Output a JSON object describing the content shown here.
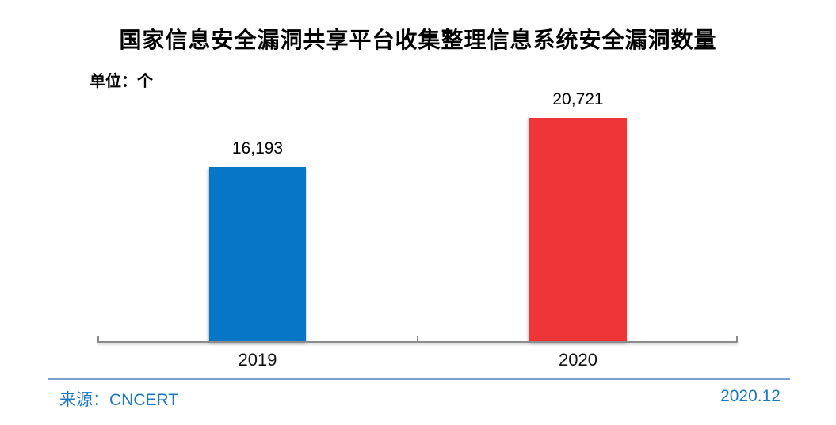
{
  "chart_data": {
    "type": "bar",
    "title": "国家信息安全漏洞共享平台收集整理信息系统安全漏洞数量",
    "unit_label": "单位：个",
    "categories": [
      "2019",
      "2020"
    ],
    "values": [
      16193,
      20721
    ],
    "value_labels": [
      "16,193",
      "20,721"
    ],
    "bar_colors": [
      "#0876C7",
      "#EE3537"
    ],
    "grid": false,
    "y_axis_visible": false,
    "legend_position": "none",
    "baseline_color": "#8C8C8C",
    "ylim": [
      0,
      22000
    ]
  },
  "footer": {
    "source": "来源：CNCERT",
    "date": "2020.12",
    "text_color": "#1A78C2",
    "separator_color": "#7E9FCD"
  }
}
